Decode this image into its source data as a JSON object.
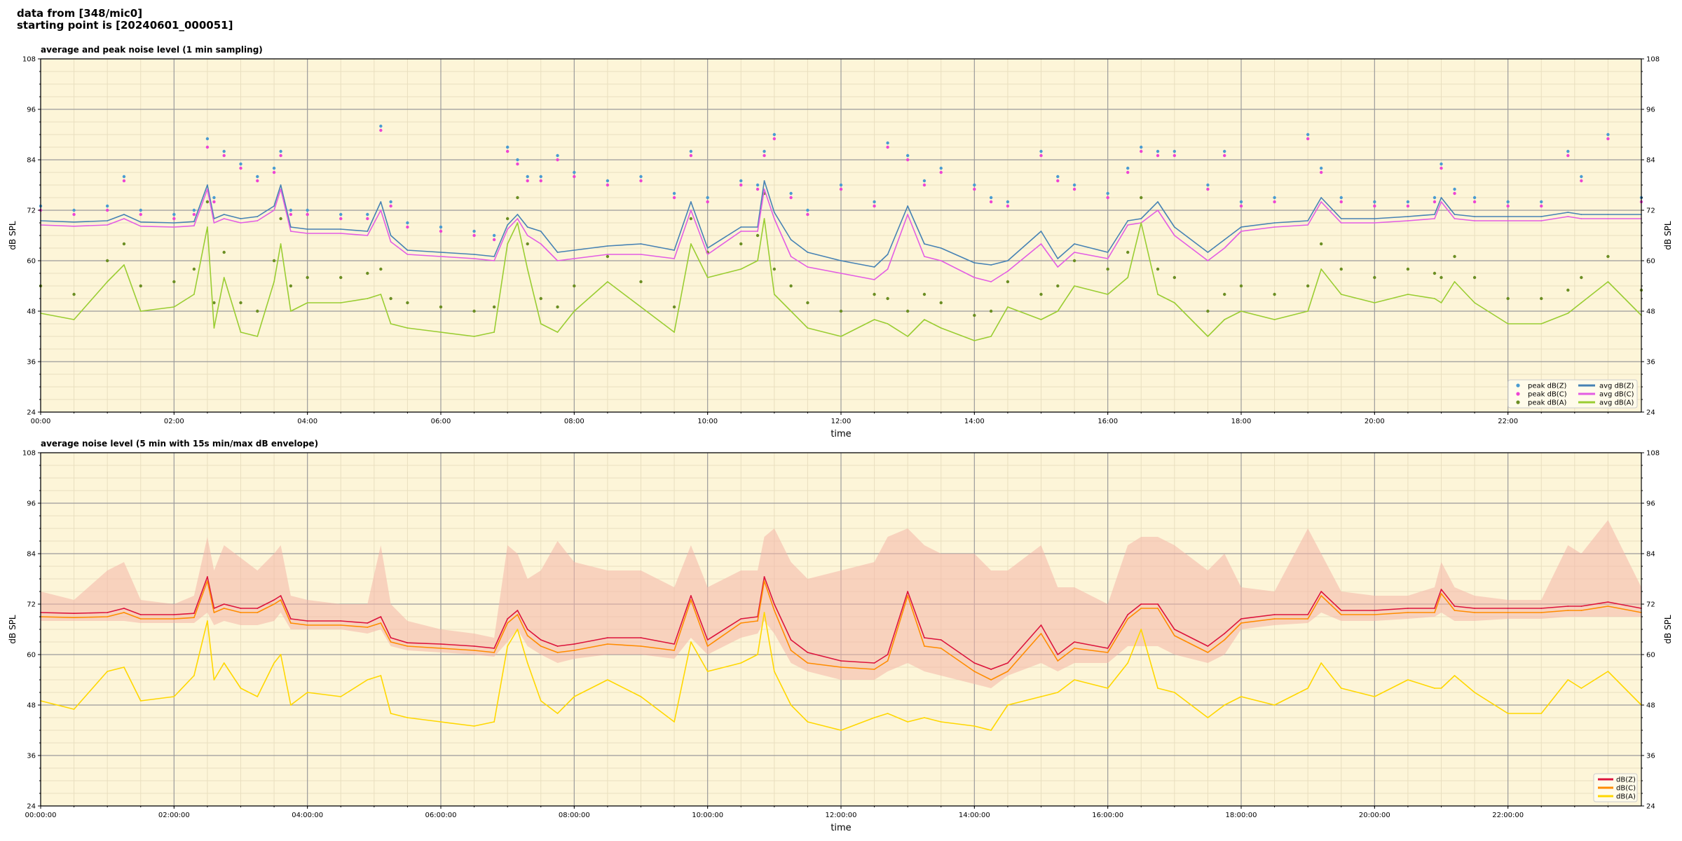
{
  "header": {
    "line1": "data from [348/mic0]",
    "line2": "starting point is [20240601_000051]"
  },
  "chart_data": [
    {
      "type": "line",
      "title": "average and peak noise level (1 min sampling)",
      "xlabel": "time",
      "ylabel": "dB SPL",
      "ylabel_right": "dB SPL",
      "xlim": [
        0,
        24
      ],
      "ylim": [
        24,
        108
      ],
      "yticks": [
        24,
        36,
        48,
        60,
        72,
        84,
        96,
        108
      ],
      "xticks": [
        "00:00",
        "02:00",
        "04:00",
        "06:00",
        "08:00",
        "10:00",
        "12:00",
        "14:00",
        "16:00",
        "18:00",
        "20:00",
        "22:00"
      ],
      "background": "#fdf5d8",
      "grid": true,
      "legend_position": "lower-right",
      "x": [
        0,
        0.5,
        1,
        1.25,
        1.5,
        2,
        2.3,
        2.5,
        2.6,
        2.75,
        3,
        3.25,
        3.5,
        3.6,
        3.75,
        4,
        4.5,
        4.9,
        5.1,
        5.25,
        5.5,
        6,
        6.5,
        6.8,
        7,
        7.15,
        7.3,
        7.5,
        7.75,
        8,
        8.5,
        9,
        9.5,
        9.75,
        10,
        10.5,
        10.75,
        10.85,
        11,
        11.25,
        11.5,
        12,
        12.5,
        12.7,
        13,
        13.25,
        13.5,
        14,
        14.25,
        14.5,
        15,
        15.25,
        15.5,
        16,
        16.3,
        16.5,
        16.75,
        17,
        17.5,
        17.75,
        18,
        18.5,
        19,
        19.2,
        19.5,
        20,
        20.5,
        20.9,
        21,
        21.2,
        21.5,
        22,
        22.5,
        22.9,
        23.1,
        23.5,
        24
      ],
      "series": [
        {
          "name": "avg dB(Z)",
          "color": "#4682b4",
          "style": "line",
          "values": [
            69.5,
            69.2,
            69.5,
            71,
            69.2,
            69,
            69.3,
            78,
            70,
            71,
            70,
            70.5,
            73,
            78,
            68,
            67.5,
            67.5,
            67,
            74,
            66,
            62.5,
            62,
            61.5,
            61,
            68.5,
            71,
            68,
            67,
            62,
            62.5,
            63.5,
            64,
            62.5,
            74,
            63,
            68,
            68,
            79,
            71.5,
            65,
            62,
            60,
            58.5,
            61.5,
            73,
            64,
            63,
            59.5,
            59,
            60,
            67,
            60.5,
            64,
            62,
            69.5,
            70,
            74,
            68,
            62,
            65,
            68,
            69,
            69.5,
            75,
            70,
            70,
            70.5,
            71,
            75,
            71,
            70.5,
            70.5,
            70.5,
            71.5,
            71,
            71,
            71
          ]
        },
        {
          "name": "avg dB(C)",
          "color": "#e35de3",
          "style": "line",
          "values": [
            68.5,
            68.2,
            68.5,
            70,
            68.2,
            68,
            68.3,
            77,
            69,
            70,
            69,
            69.5,
            72,
            77,
            67,
            66.5,
            66.5,
            66,
            72,
            64.5,
            61.5,
            61,
            60.5,
            60,
            67.5,
            70,
            66,
            64,
            60,
            60.5,
            61.5,
            61.5,
            60.5,
            72,
            61.5,
            67,
            67,
            77,
            70,
            61,
            58.5,
            57,
            55.5,
            58,
            71,
            61,
            60,
            56,
            55,
            57.5,
            64,
            58.5,
            62,
            60.5,
            68.5,
            69,
            72,
            66,
            60,
            63,
            67,
            68,
            68.5,
            74,
            69,
            69,
            69.5,
            70,
            74,
            70,
            69.5,
            69.5,
            69.5,
            70.5,
            70,
            70,
            70
          ]
        },
        {
          "name": "avg dB(A)",
          "color": "#9acd32",
          "style": "line",
          "values": [
            47.5,
            46,
            55,
            59,
            48,
            49,
            52,
            68,
            44,
            56,
            43,
            42,
            55,
            64,
            48,
            50,
            50,
            51,
            52,
            45,
            44,
            43,
            42,
            43,
            64,
            69,
            58,
            45,
            43,
            48,
            55,
            49,
            43,
            64,
            56,
            58,
            60,
            70,
            52,
            48,
            44,
            42,
            46,
            45,
            42,
            46,
            44,
            41,
            42,
            49,
            46,
            48,
            54,
            52,
            56,
            69,
            52,
            50,
            42,
            46,
            48,
            46,
            48,
            58,
            52,
            50,
            52,
            51,
            50,
            55,
            50,
            45,
            45,
            47.5,
            50,
            55,
            47
          ]
        },
        {
          "name": "peak dB(Z)",
          "color": "#4a9bd1",
          "style": "dots",
          "values": [
            73,
            72,
            73,
            80,
            72,
            71,
            72,
            89,
            75,
            86,
            83,
            80,
            82,
            86,
            72,
            72,
            71,
            71,
            92,
            74,
            69,
            68,
            67,
            66,
            87,
            84,
            80,
            80,
            85,
            81,
            79,
            80,
            76,
            86,
            75,
            79,
            78,
            86,
            90,
            76,
            72,
            78,
            74,
            88,
            85,
            79,
            82,
            78,
            75,
            74,
            86,
            80,
            78,
            76,
            82,
            87,
            86,
            86,
            78,
            86,
            74,
            75,
            90,
            82,
            75,
            74,
            74,
            75,
            83,
            77,
            75,
            74,
            74,
            86,
            80,
            90,
            75
          ]
        },
        {
          "name": "peak dB(C)",
          "color": "#ee44d4",
          "style": "dots",
          "values": [
            72,
            71,
            72,
            79,
            71,
            70,
            71,
            87,
            74,
            85,
            82,
            79,
            81,
            85,
            71,
            71,
            70,
            70,
            91,
            73,
            68,
            67,
            66,
            65,
            86,
            83,
            79,
            79,
            84,
            80,
            78,
            79,
            75,
            85,
            74,
            78,
            77,
            85,
            89,
            75,
            71,
            77,
            73,
            87,
            84,
            78,
            81,
            77,
            74,
            73,
            85,
            79,
            77,
            75,
            81,
            86,
            85,
            85,
            77,
            85,
            73,
            74,
            89,
            81,
            74,
            73,
            73,
            74,
            82,
            76,
            74,
            73,
            73,
            85,
            79,
            89,
            74
          ]
        },
        {
          "name": "peak dB(A)",
          "color": "#6b8e23",
          "style": "dots",
          "values": [
            54,
            52,
            60,
            64,
            54,
            55,
            58,
            74,
            50,
            62,
            50,
            48,
            60,
            70,
            54,
            56,
            56,
            57,
            58,
            51,
            50,
            49,
            48,
            49,
            70,
            75,
            64,
            51,
            49,
            54,
            61,
            55,
            49,
            70,
            62,
            64,
            66,
            76,
            58,
            54,
            50,
            48,
            52,
            51,
            48,
            52,
            50,
            47,
            48,
            55,
            52,
            54,
            60,
            58,
            62,
            75,
            58,
            56,
            48,
            52,
            54,
            52,
            54,
            64,
            58,
            56,
            58,
            57,
            56,
            61,
            56,
            51,
            51,
            53,
            56,
            61,
            53
          ]
        }
      ]
    },
    {
      "type": "line",
      "title": "average noise level (5 min with 15s min/max dB envelope)",
      "xlabel": "time",
      "ylabel": "dB SPL",
      "ylabel_right": "dB SPL",
      "xlim": [
        0,
        24
      ],
      "ylim": [
        24,
        108
      ],
      "yticks": [
        24,
        36,
        48,
        60,
        72,
        84,
        96,
        108
      ],
      "xticks": [
        "00:00:00",
        "02:00:00",
        "04:00:00",
        "06:00:00",
        "08:00:00",
        "10:00:00",
        "12:00:00",
        "14:00:00",
        "16:00:00",
        "18:00:00",
        "20:00:00",
        "22:00:00"
      ],
      "background": "#fdf5d8",
      "grid": true,
      "legend_position": "lower-right",
      "x": [
        0,
        0.5,
        1,
        1.25,
        1.5,
        2,
        2.3,
        2.5,
        2.6,
        2.75,
        3,
        3.25,
        3.5,
        3.6,
        3.75,
        4,
        4.5,
        4.9,
        5.1,
        5.25,
        5.5,
        6,
        6.5,
        6.8,
        7,
        7.15,
        7.3,
        7.5,
        7.75,
        8,
        8.5,
        9,
        9.5,
        9.75,
        10,
        10.5,
        10.75,
        10.85,
        11,
        11.25,
        11.5,
        12,
        12.5,
        12.7,
        13,
        13.25,
        13.5,
        14,
        14.25,
        14.5,
        15,
        15.25,
        15.5,
        16,
        16.3,
        16.5,
        16.75,
        17,
        17.5,
        17.75,
        18,
        18.5,
        19,
        19.2,
        19.5,
        20,
        20.5,
        20.9,
        21,
        21.2,
        21.5,
        22,
        22.5,
        22.9,
        23.1,
        23.5,
        24
      ],
      "envelope": {
        "color": "#f4b5a8",
        "upper": [
          75,
          73,
          80,
          82,
          73,
          72,
          74,
          88,
          80,
          86,
          83,
          80,
          84,
          86,
          74,
          73,
          72,
          72,
          86,
          72,
          68,
          66,
          65,
          64,
          86,
          84,
          78,
          80,
          87,
          82,
          80,
          80,
          76,
          86,
          76,
          80,
          80,
          88,
          90,
          82,
          78,
          80,
          82,
          88,
          90,
          86,
          84,
          84,
          80,
          80,
          86,
          76,
          76,
          72,
          86,
          88,
          88,
          86,
          80,
          84,
          76,
          75,
          90,
          84,
          75,
          74,
          74,
          76,
          82,
          76,
          74,
          73,
          73,
          86,
          84,
          92,
          76
        ],
        "lower": [
          68,
          68,
          68,
          68,
          67.5,
          67.5,
          67.5,
          70,
          67,
          68,
          67,
          67,
          68,
          70,
          66,
          66,
          66,
          65,
          66,
          62,
          61,
          60.5,
          60,
          59.5,
          63,
          66,
          62,
          60,
          58,
          59,
          60,
          60,
          59,
          64,
          60,
          64,
          65,
          68,
          65,
          58,
          56,
          54,
          54,
          56,
          58,
          56,
          55,
          53,
          52,
          55,
          58,
          56,
          58,
          58,
          62,
          62,
          62,
          60,
          58,
          60,
          66,
          67,
          67.5,
          70,
          68,
          68,
          68.5,
          69,
          70,
          68,
          68,
          68.5,
          68.5,
          69,
          69,
          69,
          69
        ]
      },
      "series": [
        {
          "name": "dB(Z)",
          "color": "#dc143c",
          "values": [
            70,
            69.8,
            70,
            71,
            69.5,
            69.5,
            69.8,
            78.5,
            71,
            72,
            71,
            71,
            73,
            74,
            68.5,
            68,
            68,
            67.5,
            69,
            64,
            62.8,
            62.5,
            62,
            61.5,
            68.5,
            70.5,
            66,
            63.5,
            62,
            62.5,
            64,
            64,
            62.5,
            74,
            63.5,
            68.5,
            69,
            78.5,
            72,
            63.5,
            60.5,
            58.5,
            58,
            60,
            75,
            64,
            63.5,
            58,
            56.5,
            58,
            67,
            60,
            63,
            61.5,
            69.5,
            72,
            72,
            66,
            62,
            65,
            68.5,
            69.5,
            69.5,
            75,
            70.5,
            70.5,
            71,
            71,
            75.5,
            71.5,
            71,
            71,
            71,
            71.5,
            71.5,
            72.5,
            71
          ]
        },
        {
          "name": "dB(C)",
          "color": "#ff8c00",
          "values": [
            69,
            68.8,
            69,
            70,
            68.5,
            68.5,
            68.8,
            77.5,
            70,
            71,
            70,
            70,
            72,
            73,
            67.5,
            67,
            67,
            66.5,
            67.5,
            63,
            62,
            61.5,
            61,
            60.5,
            67.5,
            69.5,
            64.5,
            62,
            60.5,
            61,
            62.5,
            62,
            61,
            73,
            62,
            67.5,
            68,
            77.5,
            70.5,
            61,
            58,
            57,
            56.5,
            58.5,
            74,
            62,
            61.5,
            56,
            54,
            56,
            65,
            58.5,
            61.5,
            60.5,
            68.5,
            71,
            71,
            64.5,
            60.5,
            63.5,
            67.5,
            68.5,
            68.5,
            74,
            69.5,
            69.5,
            70,
            70,
            74.5,
            70.5,
            70,
            70,
            70,
            70.5,
            70.5,
            71.5,
            70
          ]
        },
        {
          "name": "dB(A)",
          "color": "#ffd700",
          "values": [
            49,
            47,
            56,
            57,
            49,
            50,
            55,
            68,
            54,
            58,
            52,
            50,
            58,
            60,
            48,
            51,
            50,
            54,
            55,
            46,
            45,
            44,
            43,
            44,
            62,
            66,
            58,
            49,
            46,
            50,
            54,
            50,
            44,
            63,
            56,
            58,
            60,
            70,
            56,
            48,
            44,
            42,
            45,
            46,
            44,
            45,
            44,
            43,
            42,
            48,
            50,
            51,
            54,
            52,
            58,
            66,
            52,
            51,
            45,
            48,
            50,
            48,
            52,
            58,
            52,
            50,
            54,
            52,
            52,
            55,
            51,
            46,
            46,
            54,
            52,
            56,
            48
          ]
        }
      ]
    }
  ]
}
